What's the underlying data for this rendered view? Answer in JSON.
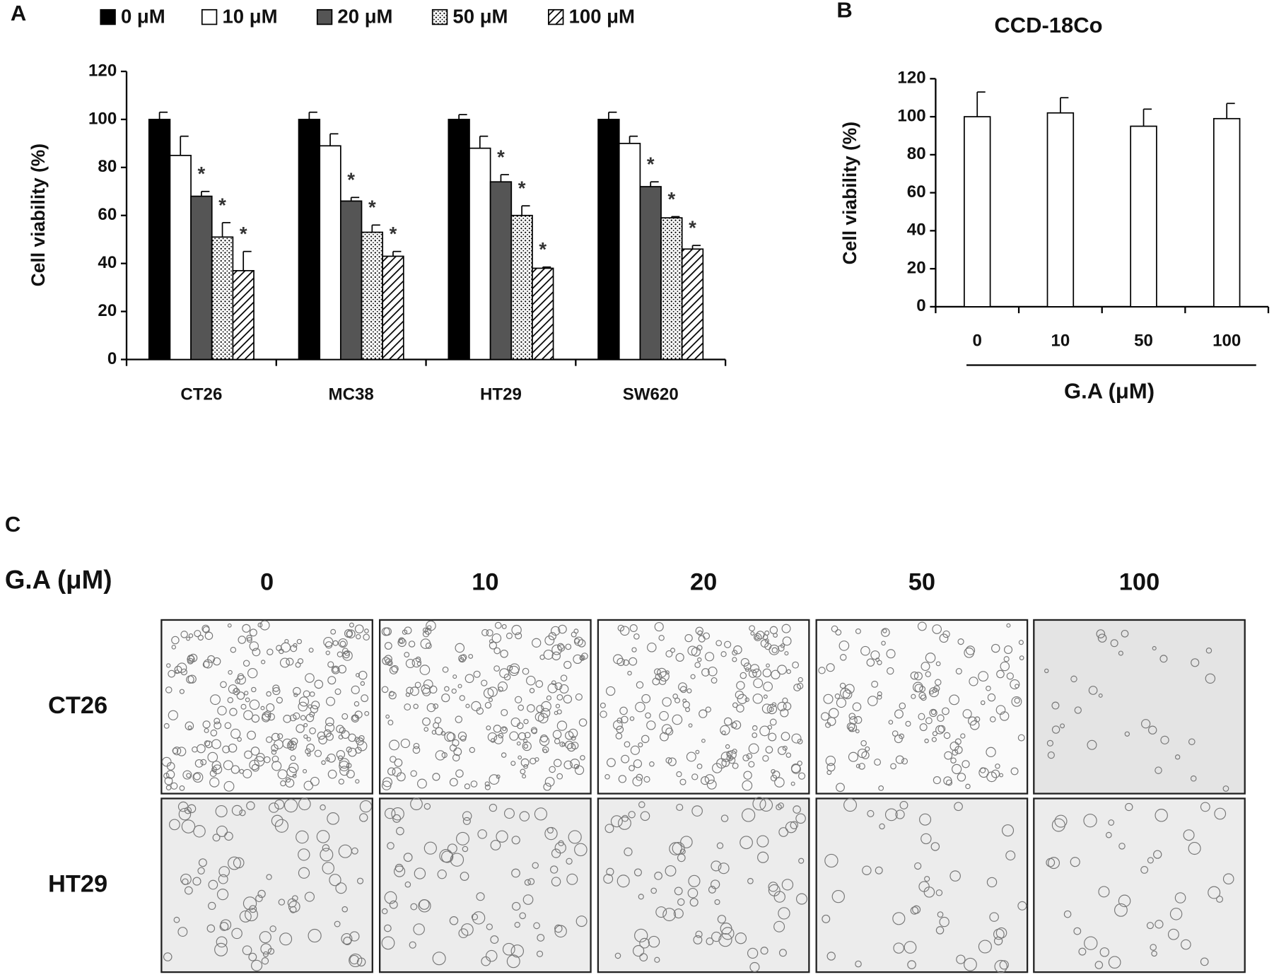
{
  "panels": [
    "A",
    "B",
    "C"
  ],
  "chart_data": [
    {
      "type": "bar",
      "ylabel": "Cell viability  (%)",
      "categories": [
        "CT26",
        "MC38",
        "HT29",
        "SW620"
      ],
      "ylim": [
        0,
        120
      ],
      "yticks": [
        0,
        20,
        40,
        60,
        80,
        100,
        120
      ],
      "legend": "top",
      "series": [
        {
          "name": "0 μM",
          "color": "#000000",
          "pattern": "solid",
          "values": [
            100,
            100,
            100,
            100
          ],
          "errors": [
            3,
            3,
            2,
            3
          ]
        },
        {
          "name": "10 μM",
          "color": "#ffffff",
          "pattern": "solid",
          "values": [
            85,
            89,
            88,
            90
          ],
          "errors": [
            8,
            5,
            5,
            3
          ]
        },
        {
          "name": "20 μM",
          "color": "#555555",
          "pattern": "solid",
          "values": [
            68,
            66,
            74,
            72
          ],
          "errors": [
            2,
            1.5,
            3,
            2
          ],
          "significance": [
            "*",
            "*",
            "*",
            "*"
          ]
        },
        {
          "name": "50 μM",
          "color": "#000000",
          "pattern": "dots",
          "values": [
            51,
            53,
            60,
            59
          ],
          "errors": [
            6,
            3,
            4,
            0.5
          ],
          "significance": [
            "*",
            "*",
            "*",
            "*"
          ]
        },
        {
          "name": "100 μM",
          "color": "#000000",
          "pattern": "hatch",
          "values": [
            37,
            43,
            38,
            46
          ],
          "errors": [
            8,
            2,
            0.5,
            1.5
          ],
          "significance": [
            "*",
            "*",
            "*",
            "*"
          ]
        }
      ]
    },
    {
      "type": "bar",
      "title": "CCD-18Co",
      "ylabel": "Cell viability  (%)",
      "xlabel": "G.A (μM)",
      "categories": [
        "0",
        "10",
        "50",
        "100"
      ],
      "values": [
        100,
        102,
        95,
        99
      ],
      "errors": [
        13,
        8,
        9,
        8
      ],
      "color": "#ffffff",
      "ylim": [
        0,
        120
      ],
      "yticks": [
        0,
        20,
        40,
        60,
        80,
        100,
        120
      ]
    }
  ],
  "panel_c": {
    "header": "G.A (μM)",
    "columns": [
      "0",
      "10",
      "20",
      "50",
      "100"
    ],
    "rows": [
      "CT26",
      "HT29"
    ]
  }
}
